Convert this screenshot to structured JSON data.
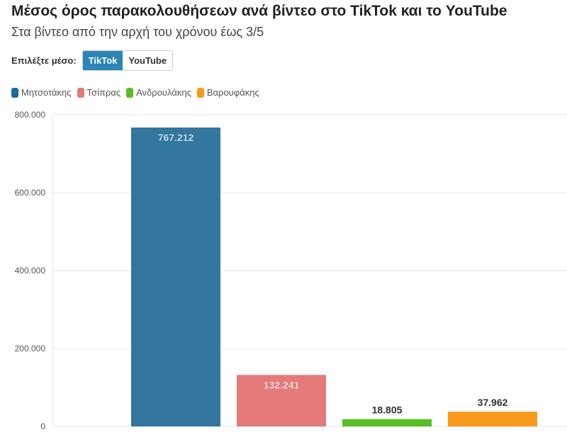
{
  "header": {
    "title": "Μέσος όρος παρακολουθήσεων ανά βίντεο στο TikTok και το YouTube",
    "subtitle": "Στα βίντεο από την αρχή του χρόνου έως 3/5"
  },
  "controls": {
    "label": "Επιλέξτε μέσο:",
    "options": [
      "TikTok",
      "YouTube"
    ],
    "selected": "TikTok"
  },
  "chart_data": {
    "type": "bar",
    "categories": [
      "Μητσοτάκης",
      "Τσίπρας",
      "Ανδρουλάκης",
      "Βαρουφάκης"
    ],
    "values": [
      767212,
      132241,
      18805,
      37962
    ],
    "value_labels": [
      "767.212",
      "132.241",
      "18.805",
      "37.962"
    ],
    "colors": [
      "#33769f",
      "#e47a7a",
      "#5abe26",
      "#f99a1c"
    ],
    "ylim": [
      0,
      800000
    ],
    "yticks": [
      0,
      200000,
      400000,
      600000,
      800000
    ],
    "ytick_labels": [
      "0",
      "200.000",
      "400.000",
      "600.000",
      "800.000"
    ],
    "legend": "top-left",
    "grid": true
  }
}
